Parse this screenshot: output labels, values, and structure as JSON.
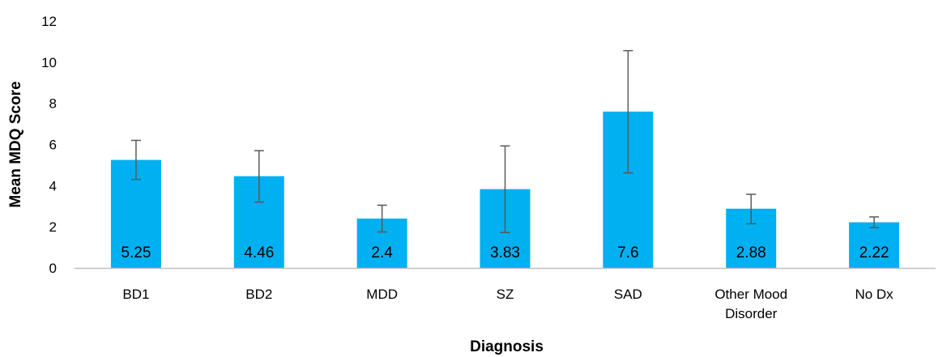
{
  "chart_data": {
    "type": "bar",
    "title": "",
    "xlabel": "Diagnosis",
    "ylabel": "Mean MDQ Score",
    "ylim": [
      0,
      12
    ],
    "yticks": [
      0,
      2,
      4,
      6,
      8,
      10,
      12
    ],
    "grid": false,
    "legend": "none",
    "categories": [
      [
        "BD1"
      ],
      [
        "BD2"
      ],
      [
        "MDD"
      ],
      [
        "SZ"
      ],
      [
        "SAD"
      ],
      [
        "Other Mood",
        "Disorder"
      ],
      [
        "No Dx"
      ]
    ],
    "values": [
      5.25,
      4.46,
      2.4,
      3.83,
      7.6,
      2.88,
      2.22
    ],
    "data_labels": [
      "5.25",
      "4.46",
      "2.4",
      "3.83",
      "7.6",
      "2.88",
      "2.22"
    ],
    "error_bars": [
      {
        "low": 4.3,
        "high": 6.2
      },
      {
        "low": 3.2,
        "high": 5.7
      },
      {
        "low": 1.75,
        "high": 3.05
      },
      {
        "low": 1.72,
        "high": 5.93
      },
      {
        "low": 4.62,
        "high": 10.56
      },
      {
        "low": 2.15,
        "high": 3.58
      },
      {
        "low": 1.96,
        "high": 2.48
      }
    ],
    "colors": {
      "bar": "#00b0f0",
      "error_bar": "#595959",
      "axis": "#bfbfbf"
    }
  }
}
